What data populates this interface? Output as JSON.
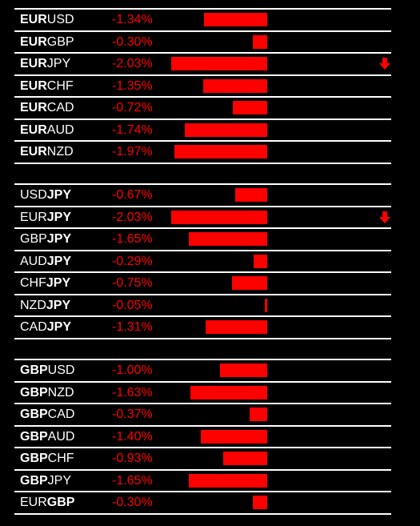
{
  "colors": {
    "background": "#000000",
    "text": "#ffffff",
    "negative": "#ff0000",
    "divider": "#ffffff"
  },
  "groups": [
    {
      "name": "EUR",
      "rows": [
        {
          "bold": "EUR",
          "rest": "USD",
          "bold_pos": "start",
          "change": "-1.34%",
          "value": -1.34
        },
        {
          "bold": "EUR",
          "rest": "GBP",
          "bold_pos": "start",
          "change": "-0.30%",
          "value": -0.3
        },
        {
          "bold": "EUR",
          "rest": "JPY",
          "bold_pos": "start",
          "change": "-2.03%",
          "value": -2.03,
          "arrow": "down-arrow-icon"
        },
        {
          "bold": "EUR",
          "rest": "CHF",
          "bold_pos": "start",
          "change": "-1.35%",
          "value": -1.35
        },
        {
          "bold": "EUR",
          "rest": "CAD",
          "bold_pos": "start",
          "change": "-0.72%",
          "value": -0.72
        },
        {
          "bold": "EUR",
          "rest": "AUD",
          "bold_pos": "start",
          "change": "-1.74%",
          "value": -1.74
        },
        {
          "bold": "EUR",
          "rest": "NZD",
          "bold_pos": "start",
          "change": "-1.97%",
          "value": -1.97
        }
      ]
    },
    {
      "name": "JPY",
      "rows": [
        {
          "bold": "JPY",
          "rest": "USD",
          "bold_pos": "end",
          "change": "-0.67%",
          "value": -0.67
        },
        {
          "bold": "JPY",
          "rest": "EUR",
          "bold_pos": "end",
          "change": "-2.03%",
          "value": -2.03,
          "arrow": "down-arrow-icon"
        },
        {
          "bold": "JPY",
          "rest": "GBP",
          "bold_pos": "end",
          "change": "-1.65%",
          "value": -1.65
        },
        {
          "bold": "JPY",
          "rest": "AUD",
          "bold_pos": "end",
          "change": "-0.29%",
          "value": -0.29
        },
        {
          "bold": "JPY",
          "rest": "CHF",
          "bold_pos": "end",
          "change": "-0.75%",
          "value": -0.75
        },
        {
          "bold": "JPY",
          "rest": "NZD",
          "bold_pos": "end",
          "change": "-0.05%",
          "value": -0.05
        },
        {
          "bold": "JPY",
          "rest": "CAD",
          "bold_pos": "end",
          "change": "-1.31%",
          "value": -1.31
        }
      ]
    },
    {
      "name": "GBP",
      "rows": [
        {
          "bold": "GBP",
          "rest": "USD",
          "bold_pos": "start",
          "change": "-1.00%",
          "value": -1.0
        },
        {
          "bold": "GBP",
          "rest": "NZD",
          "bold_pos": "start",
          "change": "-1.63%",
          "value": -1.63
        },
        {
          "bold": "GBP",
          "rest": "CAD",
          "bold_pos": "start",
          "change": "-0.37%",
          "value": -0.37
        },
        {
          "bold": "GBP",
          "rest": "AUD",
          "bold_pos": "start",
          "change": "-1.40%",
          "value": -1.4
        },
        {
          "bold": "GBP",
          "rest": "CHF",
          "bold_pos": "start",
          "change": "-0.93%",
          "value": -0.93
        },
        {
          "bold": "GBP",
          "rest": "JPY",
          "bold_pos": "start",
          "change": "-1.65%",
          "value": -1.65
        },
        {
          "bold": "GBP",
          "rest": "EUR",
          "bold_pos": "end",
          "change": "-0.30%",
          "value": -0.3
        }
      ]
    }
  ],
  "bar_scale_max": 2.03
}
